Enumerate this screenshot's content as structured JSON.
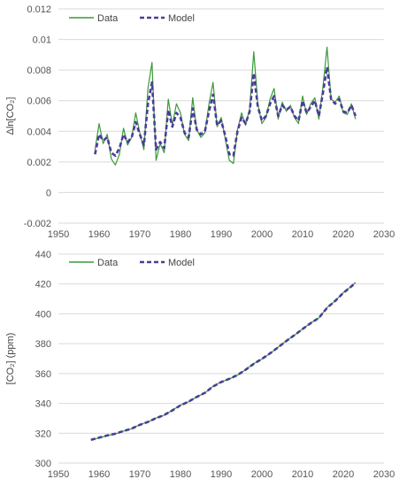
{
  "chart_data": [
    {
      "type": "line",
      "ylabel": "Δln[CO₂]",
      "xlabel": "",
      "title": "",
      "xlim": [
        1950,
        2030
      ],
      "ylim": [
        -0.002,
        0.012
      ],
      "x_ticks": [
        "1950",
        "1960",
        "1970",
        "1980",
        "1990",
        "2000",
        "2010",
        "2020",
        "2030"
      ],
      "y_ticks": [
        "-0.002",
        "0",
        "0.002",
        "0.004",
        "0.006",
        "0.008",
        "0.01",
        "0.012"
      ],
      "grid": "horizontal",
      "legend": "top-left",
      "series": [
        {
          "name": "Data",
          "style": "solid",
          "color": "#3a9a3a",
          "x": [
            1959,
            1960,
            1961,
            1962,
            1963,
            1964,
            1965,
            1966,
            1967,
            1968,
            1969,
            1970,
            1971,
            1972,
            1973,
            1974,
            1975,
            1976,
            1977,
            1978,
            1979,
            1980,
            1981,
            1982,
            1983,
            1984,
            1985,
            1986,
            1987,
            1988,
            1989,
            1990,
            1991,
            1992,
            1993,
            1994,
            1995,
            1996,
            1997,
            1998,
            1999,
            2000,
            2001,
            2002,
            2003,
            2004,
            2005,
            2006,
            2007,
            2008,
            2009,
            2010,
            2011,
            2012,
            2013,
            2014,
            2015,
            2016,
            2017,
            2018,
            2019,
            2020,
            2021,
            2022,
            2023
          ],
          "values": [
            0.0028,
            0.0045,
            0.0032,
            0.0038,
            0.0022,
            0.0018,
            0.0025,
            0.0042,
            0.0031,
            0.0036,
            0.0052,
            0.0039,
            0.0028,
            0.0068,
            0.0085,
            0.0021,
            0.0032,
            0.0026,
            0.0061,
            0.0044,
            0.0058,
            0.0052,
            0.0038,
            0.0034,
            0.0062,
            0.0041,
            0.0036,
            0.0039,
            0.0058,
            0.0072,
            0.0043,
            0.0049,
            0.0035,
            0.0021,
            0.0019,
            0.0041,
            0.0052,
            0.0044,
            0.0055,
            0.0092,
            0.0058,
            0.0045,
            0.0049,
            0.0061,
            0.0068,
            0.0048,
            0.0059,
            0.0053,
            0.0057,
            0.0049,
            0.0045,
            0.0063,
            0.0051,
            0.0058,
            0.0062,
            0.0048,
            0.0069,
            0.0095,
            0.0061,
            0.0059,
            0.0063,
            0.0052,
            0.0051,
            0.0058,
            0.0048
          ]
        },
        {
          "name": "Model",
          "style": "dashed",
          "color": "#4b3c9a",
          "x": [
            1959,
            1960,
            1961,
            1962,
            1963,
            1964,
            1965,
            1966,
            1967,
            1968,
            1969,
            1970,
            1971,
            1972,
            1973,
            1974,
            1975,
            1976,
            1977,
            1978,
            1979,
            1980,
            1981,
            1982,
            1983,
            1984,
            1985,
            1986,
            1987,
            1988,
            1989,
            1990,
            1991,
            1992,
            1993,
            1994,
            1995,
            1996,
            1997,
            1998,
            1999,
            2000,
            2001,
            2002,
            2003,
            2004,
            2005,
            2006,
            2007,
            2008,
            2009,
            2010,
            2011,
            2012,
            2013,
            2014,
            2015,
            2016,
            2017,
            2018,
            2019,
            2020,
            2021,
            2022,
            2023
          ],
          "values": [
            0.0025,
            0.0038,
            0.0034,
            0.0036,
            0.0026,
            0.0024,
            0.0029,
            0.0038,
            0.0033,
            0.0036,
            0.0046,
            0.0038,
            0.0031,
            0.0058,
            0.0072,
            0.0028,
            0.0033,
            0.0029,
            0.0054,
            0.0043,
            0.0052,
            0.0049,
            0.0039,
            0.0036,
            0.0055,
            0.0041,
            0.0038,
            0.004,
            0.0053,
            0.0064,
            0.0044,
            0.0047,
            0.0037,
            0.0025,
            0.0024,
            0.004,
            0.0049,
            0.0045,
            0.0053,
            0.0078,
            0.0056,
            0.0047,
            0.005,
            0.0058,
            0.0063,
            0.005,
            0.0057,
            0.0054,
            0.0056,
            0.005,
            0.0047,
            0.006,
            0.0052,
            0.0056,
            0.006,
            0.005,
            0.0065,
            0.0082,
            0.0061,
            0.0058,
            0.0061,
            0.0053,
            0.0052,
            0.0057,
            0.005
          ]
        }
      ]
    },
    {
      "type": "line",
      "ylabel": "[CO₂] (ppm)",
      "xlabel": "",
      "title": "",
      "xlim": [
        1950,
        2030
      ],
      "ylim": [
        300,
        440
      ],
      "x_ticks": [
        "1950",
        "1960",
        "1970",
        "1980",
        "1990",
        "2000",
        "2010",
        "2020",
        "2030"
      ],
      "y_ticks": [
        "300",
        "320",
        "340",
        "360",
        "380",
        "400",
        "420",
        "440"
      ],
      "grid": "horizontal",
      "legend": "top-left",
      "series": [
        {
          "name": "Data",
          "style": "solid",
          "color": "#3a9a3a",
          "x": [
            1958,
            1960,
            1962,
            1964,
            1966,
            1968,
            1970,
            1972,
            1974,
            1976,
            1978,
            1980,
            1982,
            1984,
            1986,
            1988,
            1990,
            1992,
            1994,
            1996,
            1998,
            2000,
            2002,
            2004,
            2006,
            2008,
            2010,
            2012,
            2014,
            2016,
            2018,
            2020,
            2022,
            2023
          ],
          "values": [
            315.5,
            316.9,
            318.4,
            319.6,
            321.4,
            323.0,
            325.7,
            327.5,
            330.2,
            332.1,
            335.4,
            338.8,
            341.1,
            344.4,
            347.0,
            351.5,
            354.4,
            356.4,
            358.9,
            362.6,
            366.7,
            369.7,
            373.4,
            377.7,
            381.9,
            385.6,
            389.9,
            393.9,
            397.2,
            404.2,
            408.7,
            414.2,
            418.5,
            421.0
          ]
        },
        {
          "name": "Model",
          "style": "dashed",
          "color": "#4b3c9a",
          "x": [
            1958,
            1960,
            1962,
            1964,
            1966,
            1968,
            1970,
            1972,
            1974,
            1976,
            1978,
            1980,
            1982,
            1984,
            1986,
            1988,
            1990,
            1992,
            1994,
            1996,
            1998,
            2000,
            2002,
            2004,
            2006,
            2008,
            2010,
            2012,
            2014,
            2016,
            2018,
            2020,
            2022,
            2023
          ],
          "values": [
            315.6,
            317.0,
            318.5,
            319.7,
            321.5,
            323.1,
            325.6,
            327.6,
            330.1,
            332.2,
            335.3,
            338.7,
            341.2,
            344.3,
            347.1,
            351.3,
            354.3,
            356.5,
            359.0,
            362.5,
            366.5,
            369.8,
            373.5,
            377.6,
            381.8,
            385.7,
            389.8,
            393.8,
            397.3,
            404.0,
            408.6,
            414.0,
            418.4,
            420.8
          ]
        }
      ]
    }
  ]
}
